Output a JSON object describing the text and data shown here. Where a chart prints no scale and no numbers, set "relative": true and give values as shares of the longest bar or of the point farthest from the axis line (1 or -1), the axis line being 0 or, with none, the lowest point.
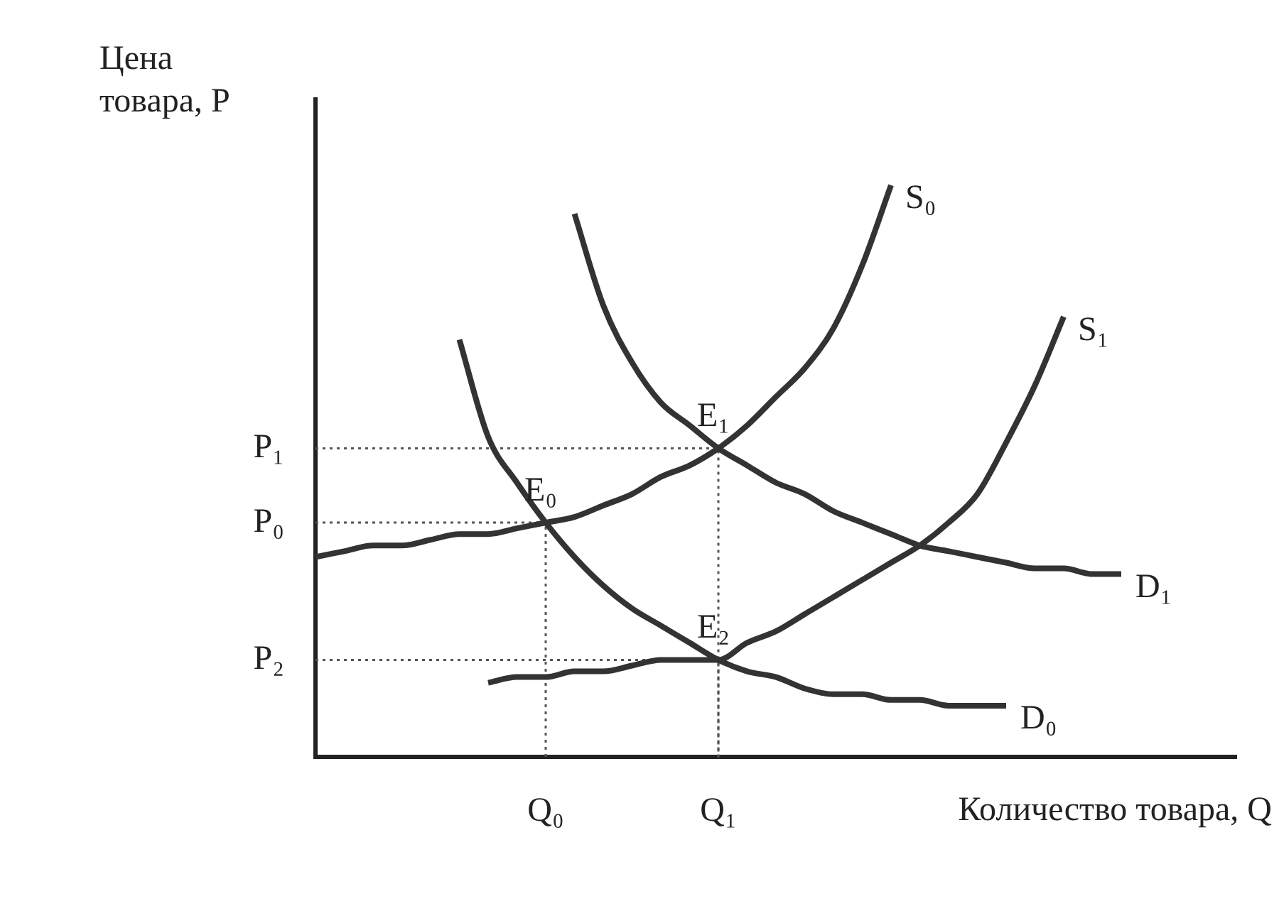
{
  "chart_data": {
    "type": "line",
    "relative": true,
    "xlabel": "Количество товара, Q",
    "ylabel": "Цена товара, P",
    "categories": [
      null,
      null,
      null,
      null,
      null,
      null,
      null,
      null,
      "Q₀",
      null,
      null,
      null,
      null,
      null,
      "Q₁",
      null,
      null,
      null,
      null,
      null,
      null,
      null,
      null,
      null,
      null,
      null,
      null,
      null,
      null,
      null,
      null,
      null,
      null
    ],
    "grid": false,
    "legend": false,
    "marker": "none",
    "line_style": "solid",
    "series": [
      {
        "name": "S₀",
        "color": "#333333",
        "values": [
          0.35,
          0.36,
          0.37,
          0.37,
          0.38,
          0.39,
          0.39,
          0.4,
          0.41,
          0.42,
          0.44,
          0.46,
          0.49,
          0.51,
          0.54,
          0.58,
          0.63,
          0.68,
          0.75,
          0.86,
          1,
          null,
          null,
          null,
          null,
          null,
          null,
          null,
          null,
          null,
          null,
          null,
          null
        ]
      },
      {
        "name": "S₁",
        "color": "#333333",
        "values": [
          null,
          null,
          null,
          null,
          null,
          null,
          0.13,
          0.14,
          0.14,
          0.15,
          0.15,
          0.16,
          0.17,
          0.17,
          0.17,
          0.2,
          0.22,
          0.25,
          0.28,
          0.31,
          0.34,
          0.37,
          0.41,
          0.46,
          0.55,
          0.65,
          0.77,
          null,
          null,
          null,
          null,
          null,
          null
        ]
      },
      {
        "name": "D₀",
        "color": "#333333",
        "values": [
          null,
          null,
          null,
          null,
          null,
          0.73,
          0.56,
          0.48,
          0.41,
          0.35,
          0.3,
          0.26,
          0.23,
          0.2,
          0.17,
          0.15,
          0.14,
          0.12,
          0.11,
          0.11,
          0.1,
          0.1,
          0.09,
          0.09,
          0.09,
          null,
          null,
          null,
          null,
          null,
          null,
          null,
          null
        ]
      },
      {
        "name": "D₁",
        "color": "#333333",
        "values": [
          null,
          null,
          null,
          null,
          null,
          null,
          null,
          null,
          null,
          0.95,
          0.79,
          0.69,
          0.62,
          0.58,
          0.54,
          0.51,
          0.48,
          0.46,
          0.43,
          0.41,
          0.39,
          0.37,
          0.36,
          0.35,
          0.34,
          0.33,
          0.33,
          0.32,
          0.32,
          null,
          null,
          null,
          null
        ]
      }
    ],
    "annotations": [
      {
        "text": "E₀",
        "x": "Q₀",
        "y": 0.41
      },
      {
        "text": "E₁",
        "x": "Q₁",
        "y": 0.54
      },
      {
        "text": "E₂",
        "x": "Q₁",
        "y": 0.17
      },
      "P₀",
      "P₁",
      "P₂"
    ]
  }
}
